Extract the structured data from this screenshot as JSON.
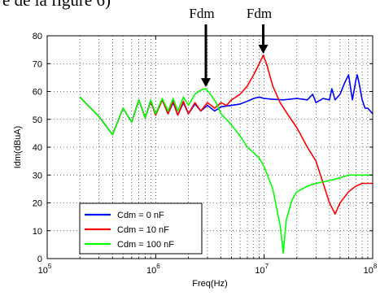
{
  "page_fragment": "e de la figure 6)",
  "chart_data": {
    "type": "line",
    "title": "",
    "xlabel": "Freq(Hz)",
    "ylabel": "Idm(dBuA)",
    "x_scale": "log",
    "xlim": [
      100000,
      100000000
    ],
    "ylim": [
      0,
      80
    ],
    "x_ticks": [
      {
        "value": 100000,
        "base": "10",
        "exp": "5"
      },
      {
        "value": 1000000,
        "base": "10",
        "exp": "6"
      },
      {
        "value": 10000000,
        "base": "10",
        "exp": "7"
      },
      {
        "value": 100000000,
        "base": "10",
        "exp": "8"
      }
    ],
    "y_ticks": [
      0,
      10,
      20,
      30,
      40,
      50,
      60,
      70,
      80
    ],
    "grid": true,
    "legend_position": "bottom-left",
    "annotations": [
      {
        "text": "Fdm",
        "x": 2900000,
        "y": 61
      },
      {
        "text": "Fdm",
        "x": 9800000,
        "y": 73
      }
    ],
    "series": [
      {
        "name": "Cdm = 0 nF",
        "color": "#0000ff",
        "points": [
          [
            200000,
            58
          ],
          [
            300000,
            51
          ],
          [
            400000,
            44.5
          ],
          [
            500000,
            54
          ],
          [
            600000,
            49
          ],
          [
            700000,
            57
          ],
          [
            800000,
            50.5
          ],
          [
            900000,
            56.5
          ],
          [
            1000000,
            51.5
          ],
          [
            1150000,
            57
          ],
          [
            1300000,
            52
          ],
          [
            1450000,
            56
          ],
          [
            1600000,
            51.5
          ],
          [
            1800000,
            56
          ],
          [
            2000000,
            52
          ],
          [
            2300000,
            55.5
          ],
          [
            2600000,
            53
          ],
          [
            3000000,
            55
          ],
          [
            3500000,
            53
          ],
          [
            4000000,
            54.5
          ],
          [
            5000000,
            55
          ],
          [
            6000000,
            55.5
          ],
          [
            7000000,
            56.5
          ],
          [
            8000000,
            57.5
          ],
          [
            9000000,
            58
          ],
          [
            10000000,
            57.5
          ],
          [
            12000000,
            57.2
          ],
          [
            15000000,
            57
          ],
          [
            20000000,
            57.5
          ],
          [
            25000000,
            57
          ],
          [
            28000000,
            59
          ],
          [
            30000000,
            56
          ],
          [
            35000000,
            57.5
          ],
          [
            40000000,
            57
          ],
          [
            42000000,
            61
          ],
          [
            45000000,
            57
          ],
          [
            50000000,
            59
          ],
          [
            55000000,
            63
          ],
          [
            60000000,
            66
          ],
          [
            65000000,
            57
          ],
          [
            70000000,
            64
          ],
          [
            72000000,
            66
          ],
          [
            75000000,
            63
          ],
          [
            80000000,
            57
          ],
          [
            85000000,
            54
          ],
          [
            90000000,
            54
          ],
          [
            100000000,
            52
          ]
        ]
      },
      {
        "name": "Cdm = 10 nF",
        "color": "#ff0000",
        "points": [
          [
            200000,
            58
          ],
          [
            300000,
            51
          ],
          [
            400000,
            44.5
          ],
          [
            500000,
            54
          ],
          [
            600000,
            49
          ],
          [
            700000,
            57
          ],
          [
            800000,
            50.5
          ],
          [
            900000,
            56.5
          ],
          [
            1000000,
            51.5
          ],
          [
            1150000,
            57
          ],
          [
            1300000,
            52
          ],
          [
            1450000,
            56.5
          ],
          [
            1600000,
            51.5
          ],
          [
            1800000,
            56.5
          ],
          [
            2000000,
            52
          ],
          [
            2300000,
            56
          ],
          [
            2600000,
            53
          ],
          [
            3000000,
            56
          ],
          [
            3500000,
            54
          ],
          [
            4000000,
            56
          ],
          [
            4500000,
            55
          ],
          [
            5000000,
            57
          ],
          [
            6000000,
            59
          ],
          [
            7000000,
            62
          ],
          [
            8000000,
            66
          ],
          [
            9000000,
            70
          ],
          [
            9800000,
            73
          ],
          [
            10500000,
            70
          ],
          [
            12000000,
            62
          ],
          [
            14000000,
            56
          ],
          [
            17000000,
            51
          ],
          [
            20000000,
            47
          ],
          [
            25000000,
            40
          ],
          [
            30000000,
            35
          ],
          [
            35000000,
            27
          ],
          [
            40000000,
            20
          ],
          [
            45000000,
            16
          ],
          [
            50000000,
            20
          ],
          [
            60000000,
            24
          ],
          [
            70000000,
            26
          ],
          [
            80000000,
            27
          ],
          [
            90000000,
            27
          ],
          [
            100000000,
            27
          ]
        ]
      },
      {
        "name": "Cdm = 100 nF",
        "color": "#00ff00",
        "points": [
          [
            200000,
            58
          ],
          [
            300000,
            51
          ],
          [
            400000,
            44.5
          ],
          [
            500000,
            54
          ],
          [
            600000,
            49
          ],
          [
            700000,
            57
          ],
          [
            800000,
            50.5
          ],
          [
            900000,
            57
          ],
          [
            1000000,
            52
          ],
          [
            1150000,
            57.5
          ],
          [
            1300000,
            53
          ],
          [
            1450000,
            57.5
          ],
          [
            1600000,
            53
          ],
          [
            1800000,
            58
          ],
          [
            2000000,
            55
          ],
          [
            2300000,
            59
          ],
          [
            2600000,
            60.5
          ],
          [
            2900000,
            61
          ],
          [
            3200000,
            59
          ],
          [
            3600000,
            56
          ],
          [
            4000000,
            52
          ],
          [
            5000000,
            48
          ],
          [
            6000000,
            44
          ],
          [
            7000000,
            40
          ],
          [
            8000000,
            38
          ],
          [
            9000000,
            36
          ],
          [
            10000000,
            33
          ],
          [
            12000000,
            25
          ],
          [
            14000000,
            12
          ],
          [
            15000000,
            2
          ],
          [
            16000000,
            14
          ],
          [
            18000000,
            21
          ],
          [
            20000000,
            24
          ],
          [
            25000000,
            26
          ],
          [
            30000000,
            27
          ],
          [
            40000000,
            28
          ],
          [
            50000000,
            29
          ],
          [
            60000000,
            30
          ],
          [
            70000000,
            30
          ],
          [
            100000000,
            30
          ]
        ]
      }
    ]
  }
}
